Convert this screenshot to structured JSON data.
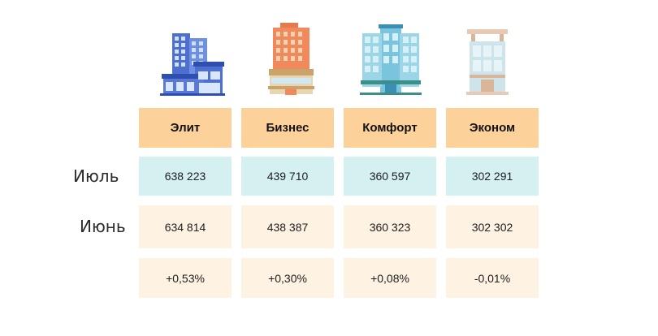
{
  "table": {
    "columns": [
      "Элит",
      "Бизнес",
      "Комфорт",
      "Эконом"
    ],
    "rows": [
      {
        "label": "Июль",
        "values": [
          "638 223",
          "439 710",
          "360 597",
          "302 291"
        ]
      },
      {
        "label": "Июнь",
        "values": [
          "634 814",
          "438 387",
          "360 323",
          "302 302"
        ]
      },
      {
        "label": "",
        "values": [
          "+0,53%",
          "+0,30%",
          "+0,08%",
          "-0,01%"
        ]
      }
    ]
  },
  "icons": [
    "building-elite-icon",
    "building-business-icon",
    "building-comfort-icon",
    "building-economy-icon"
  ],
  "colors": {
    "header": "#fdd19a",
    "row_july": "#d4f0f1",
    "row_june": "#fef2e2",
    "row_change": "#fef2e2"
  }
}
